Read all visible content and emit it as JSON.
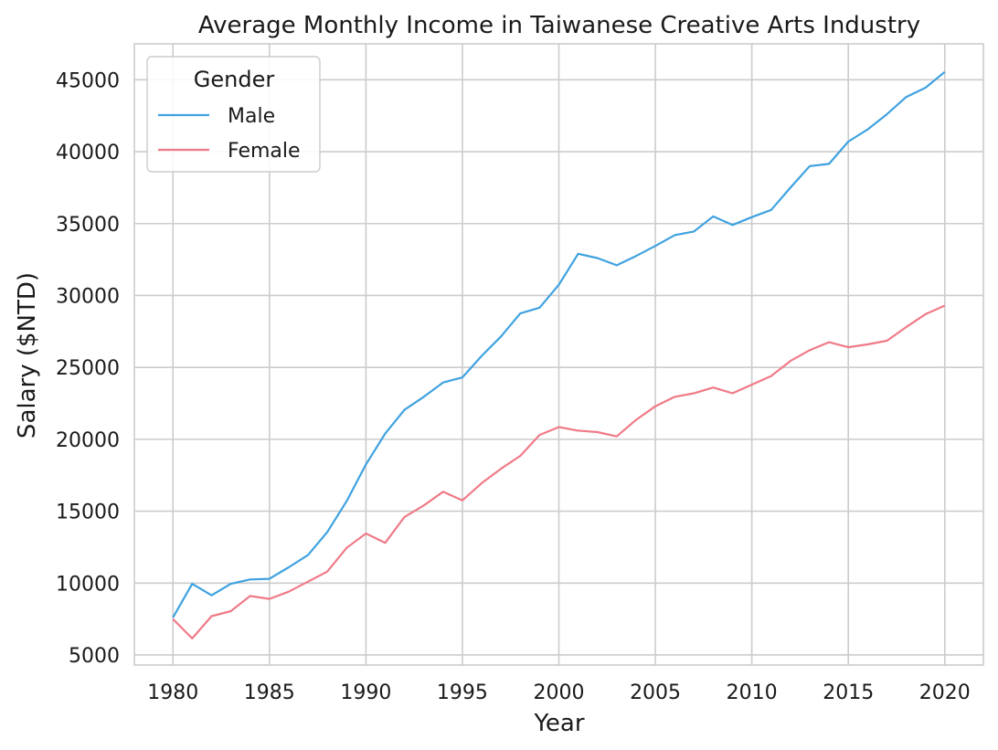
{
  "chart_data": {
    "type": "line",
    "title": "Average Monthly Income in Taiwanese Creative Arts Industry",
    "xlabel": "Year",
    "ylabel": "Salary ($NTD)",
    "xlim": [
      1978,
      2022
    ],
    "ylim": [
      4300,
      47500
    ],
    "grid": true,
    "legend": {
      "title": "Gender",
      "placement": "top-left"
    },
    "x_ticks": [
      1980,
      1985,
      1990,
      1995,
      2000,
      2005,
      2010,
      2015,
      2020
    ],
    "y_ticks": [
      5000,
      10000,
      15000,
      20000,
      25000,
      30000,
      35000,
      40000,
      45000
    ],
    "x": [
      1980,
      1981,
      1982,
      1983,
      1984,
      1985,
      1986,
      1987,
      1988,
      1989,
      1990,
      1991,
      1992,
      1993,
      1994,
      1995,
      1996,
      1997,
      1998,
      1999,
      2000,
      2001,
      2002,
      2003,
      2004,
      2005,
      2006,
      2007,
      2008,
      2009,
      2010,
      2011,
      2012,
      2013,
      2014,
      2015,
      2016,
      2017,
      2018,
      2019,
      2020
    ],
    "series": [
      {
        "name": "Male",
        "color": "#3fa2e0",
        "values": [
          7600,
          9950,
          9150,
          9950,
          10250,
          10300,
          11100,
          11950,
          13550,
          15700,
          18250,
          20400,
          22050,
          22950,
          23950,
          24300,
          25800,
          27150,
          28750,
          29150,
          30750,
          32900,
          32600,
          32100,
          32750,
          33450,
          34200,
          34450,
          35500,
          34900,
          35450,
          35950,
          37500,
          39000,
          39150,
          40700,
          41550,
          42600,
          43800,
          44450,
          45550
        ]
      },
      {
        "name": "Female",
        "color": "#f07a87",
        "values": [
          7500,
          6150,
          7700,
          8050,
          9100,
          8900,
          9400,
          10100,
          10800,
          12450,
          13450,
          12800,
          14600,
          15400,
          16350,
          15750,
          16950,
          17950,
          18850,
          20300,
          20850,
          20600,
          20500,
          20200,
          21350,
          22300,
          22950,
          23200,
          23600,
          23200,
          23800,
          24400,
          25450,
          26200,
          26750,
          26400,
          26600,
          26850,
          27800,
          28700,
          29300
        ]
      }
    ]
  }
}
